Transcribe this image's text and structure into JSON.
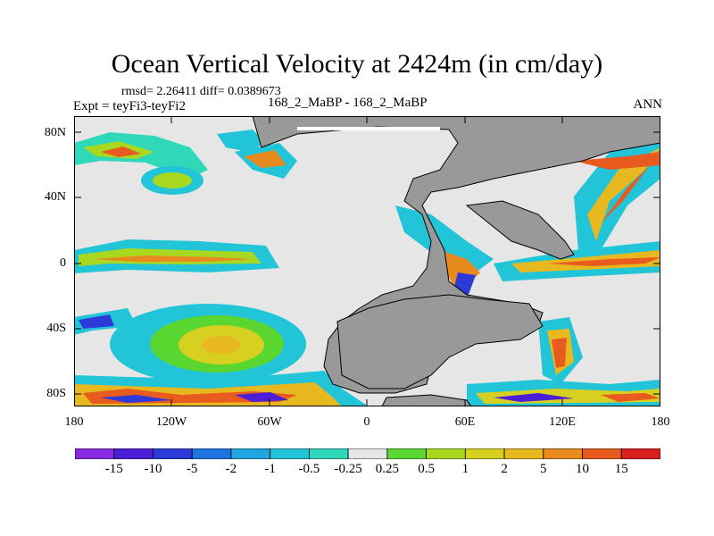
{
  "title": "Ocean Vertical Velocity at 2424m (in cm/day)",
  "stats": "rmsd= 2.26411 diff= 0.0389673",
  "expt": "Expt = teyFi3-teyFi2",
  "case": "168_2_MaBP - 168_2_MaBP",
  "period": "ANN",
  "lat_labels": [
    "80N",
    "40N",
    "0",
    "40S",
    "80S"
  ],
  "lon_labels": [
    "180",
    "120W",
    "60W",
    "0",
    "60E",
    "120E",
    "180"
  ],
  "colorbar": {
    "labels": [
      "-15",
      "-10",
      "-5",
      "-2",
      "-1",
      "-0.5",
      "-0.25",
      "0.25",
      "0.5",
      "1",
      "2",
      "5",
      "10",
      "15"
    ],
    "colors": [
      "#8a2be2",
      "#4b1fd6",
      "#2d3ad8",
      "#1e73e0",
      "#1fa5e0",
      "#22c4d8",
      "#2fd8b8",
      "#e6e6e6",
      "#5ad630",
      "#a8d820",
      "#d8d020",
      "#e8b820",
      "#e88a1e",
      "#e85a1e",
      "#d8201e"
    ]
  },
  "colors": {
    "land": "#999999",
    "ocean_neutral": "#e6e6e6"
  }
}
